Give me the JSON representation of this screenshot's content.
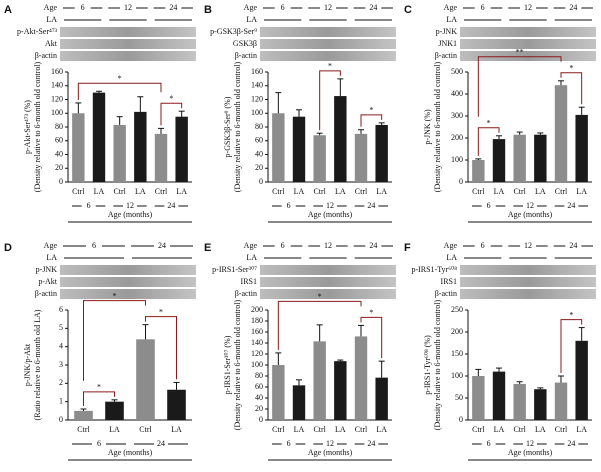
{
  "chart_data": [
    {
      "type": "bar",
      "panel": "A",
      "blot_rows": [
        "Age",
        "LA",
        "p-Akt-Ser⁴⁷³",
        "Akt",
        "β-actin"
      ],
      "ylabel": "p-Akt-Ser⁴⁷³ (%)",
      "ylabel_note": "(Density relative to 6-month old control)",
      "categories": [
        "Ctrl",
        "LA",
        "Ctrl",
        "LA",
        "Ctrl",
        "LA"
      ],
      "groups": [
        "6",
        "12",
        "24"
      ],
      "xlabel": "Age (months)",
      "values": [
        100,
        130,
        83,
        102,
        70,
        95
      ],
      "errors": [
        15,
        2,
        12,
        22,
        8,
        8
      ],
      "colors": [
        "#8c8c8c",
        "#1a1a1a",
        "#8c8c8c",
        "#1a1a1a",
        "#8c8c8c",
        "#1a1a1a"
      ],
      "ylim": [
        0,
        160
      ],
      "yticks": [
        0,
        20,
        40,
        60,
        80,
        100,
        120,
        140,
        160
      ],
      "significance": [
        {
          "label": "*",
          "pair": [
            4,
            5
          ]
        },
        {
          "label": "*",
          "pair": [
            0,
            4
          ]
        }
      ]
    },
    {
      "type": "bar",
      "panel": "B",
      "blot_rows": [
        "Age",
        "LA",
        "p-GSK3β-Ser⁹",
        "GSK3β",
        "β-actin"
      ],
      "ylabel": "p-GSK3β-Ser⁹ (%)",
      "ylabel_note": "(Density relative to 6-month old control)",
      "categories": [
        "Ctrl",
        "LA",
        "Ctrl",
        "LA",
        "Ctrl",
        "LA"
      ],
      "groups": [
        "6",
        "12",
        "24"
      ],
      "xlabel": "Age (months)",
      "values": [
        100,
        95,
        68,
        125,
        70,
        83
      ],
      "errors": [
        30,
        10,
        3,
        25,
        6,
        3
      ],
      "colors": [
        "#8c8c8c",
        "#1a1a1a",
        "#8c8c8c",
        "#1a1a1a",
        "#8c8c8c",
        "#1a1a1a"
      ],
      "ylim": [
        0,
        160
      ],
      "yticks": [
        0,
        20,
        40,
        60,
        80,
        100,
        120,
        140,
        160
      ],
      "significance": [
        {
          "label": "*",
          "pair": [
            2,
            3
          ]
        },
        {
          "label": "*",
          "pair": [
            4,
            5
          ]
        }
      ]
    },
    {
      "type": "bar",
      "panel": "C",
      "blot_rows": [
        "Age",
        "LA",
        "p-JNK",
        "JNK1",
        "β-actin"
      ],
      "ylabel": "p-JNK (%)",
      "ylabel_note": "(Density relative to 6-month old control)",
      "categories": [
        "Ctrl",
        "LA",
        "Ctrl",
        "LA",
        "Ctrl",
        "LA"
      ],
      "groups": [
        "6",
        "12",
        "24"
      ],
      "xlabel": "Age (months)",
      "values": [
        100,
        195,
        215,
        215,
        440,
        305
      ],
      "errors": [
        5,
        15,
        12,
        8,
        20,
        35
      ],
      "colors": [
        "#8c8c8c",
        "#1a1a1a",
        "#8c8c8c",
        "#1a1a1a",
        "#8c8c8c",
        "#1a1a1a"
      ],
      "ylim": [
        0,
        500
      ],
      "yticks": [
        0,
        100,
        200,
        300,
        400,
        500
      ],
      "significance": [
        {
          "label": "*",
          "pair": [
            0,
            1
          ]
        },
        {
          "label": "*",
          "pair": [
            4,
            5
          ]
        },
        {
          "label": "**",
          "pair": [
            0,
            4
          ]
        }
      ]
    },
    {
      "type": "bar",
      "panel": "D",
      "blot_rows": [
        "Age",
        "LA",
        "p-JNK",
        "p-Akt",
        "β-actin"
      ],
      "ylabel": "p-JNK/p-Akt",
      "ylabel_note": "(Ratio relative to 6-month old LA)",
      "categories": [
        "Ctrl",
        "LA",
        "Ctrl",
        "LA"
      ],
      "groups": [
        "6",
        "24"
      ],
      "xlabel": "Age (months)",
      "values": [
        0.5,
        1.0,
        4.4,
        1.65
      ],
      "errors": [
        0.1,
        0.1,
        0.8,
        0.4
      ],
      "colors": [
        "#8c8c8c",
        "#1a1a1a",
        "#8c8c8c",
        "#1a1a1a"
      ],
      "ylim": [
        0,
        6
      ],
      "yticks": [
        0,
        1,
        2,
        3,
        4,
        5,
        6
      ],
      "significance": [
        {
          "label": "*",
          "pair": [
            0,
            1
          ]
        },
        {
          "label": "*",
          "pair": [
            2,
            3
          ]
        },
        {
          "label": "*",
          "pair": [
            0,
            2
          ]
        }
      ]
    },
    {
      "type": "bar",
      "panel": "E",
      "blot_rows": [
        "Age",
        "LA",
        "p-IRS1-Ser³⁰⁷",
        "IRS1",
        "β-actin"
      ],
      "ylabel": "p-IRS1-Ser³⁰⁷ (%)",
      "ylabel_note": "(Density relative to 6-month old control)",
      "categories": [
        "Ctrl",
        "LA",
        "Ctrl",
        "LA",
        "Ctrl",
        "LA"
      ],
      "groups": [
        "6",
        "12",
        "24"
      ],
      "xlabel": "Age (months)",
      "values": [
        100,
        63,
        143,
        107,
        152,
        77
      ],
      "errors": [
        22,
        10,
        30,
        2,
        20,
        30
      ],
      "colors": [
        "#8c8c8c",
        "#1a1a1a",
        "#8c8c8c",
        "#1a1a1a",
        "#8c8c8c",
        "#1a1a1a"
      ],
      "ylim": [
        0,
        200
      ],
      "yticks": [
        0,
        20,
        40,
        60,
        80,
        100,
        120,
        140,
        160,
        180,
        200
      ],
      "significance": [
        {
          "label": "*",
          "pair": [
            4,
            5
          ]
        },
        {
          "label": "*",
          "pair": [
            0,
            4
          ]
        }
      ]
    },
    {
      "type": "bar",
      "panel": "F",
      "blot_rows": [
        "Age",
        "LA",
        "p-IRS1-Tyr⁶⁰⁸",
        "IRS1",
        "β-actin"
      ],
      "ylabel": "p-IRS1-Tyr⁶⁰⁸ (%)",
      "ylabel_note": "(Density relative to 6-month old control)",
      "categories": [
        "Ctrl",
        "LA",
        "Ctrl",
        "LA",
        "Ctrl",
        "LA"
      ],
      "groups": [
        "6",
        "12",
        "24"
      ],
      "xlabel": "Age (months)",
      "values": [
        100,
        110,
        82,
        70,
        85,
        180
      ],
      "errors": [
        15,
        8,
        5,
        3,
        15,
        30
      ],
      "colors": [
        "#8c8c8c",
        "#1a1a1a",
        "#8c8c8c",
        "#1a1a1a",
        "#8c8c8c",
        "#1a1a1a"
      ],
      "ylim": [
        0,
        250
      ],
      "yticks": [
        0,
        50,
        100,
        150,
        200,
        250
      ],
      "significance": [
        {
          "label": "*",
          "pair": [
            4,
            5
          ]
        }
      ]
    }
  ]
}
